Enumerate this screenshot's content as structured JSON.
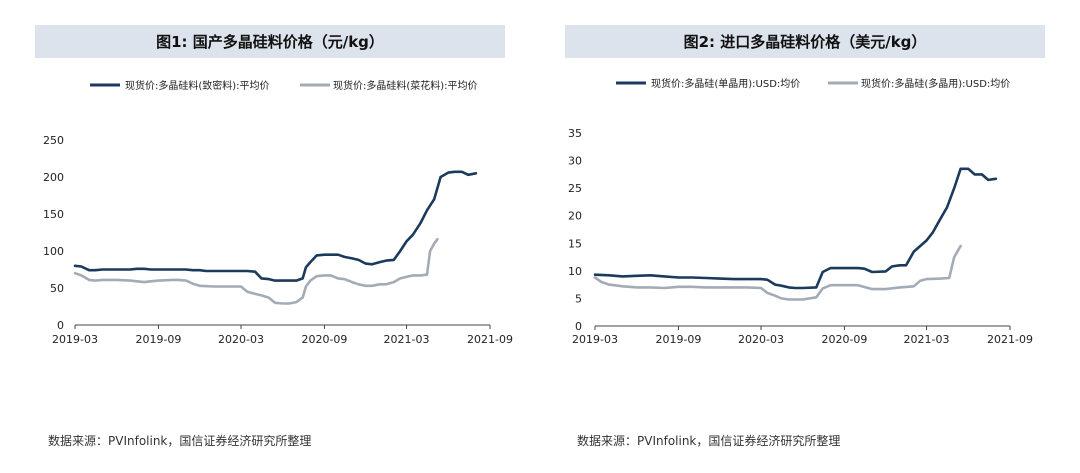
{
  "chart_data": [
    {
      "type": "line",
      "title": "图1:  国产多晶硅料价格（元/kg）",
      "xlabel": "",
      "ylabel": "",
      "ylim": [
        0,
        250
      ],
      "yticks": [
        0,
        50,
        100,
        150,
        200,
        250
      ],
      "xticks": [
        "2019-03",
        "2019-09",
        "2020-03",
        "2020-09",
        "2021-03",
        "2021-09"
      ],
      "legend_position": "top",
      "grid": false,
      "source": "数据来源：PVInfolink，国信证券经济研究所整理",
      "series": [
        {
          "name": "现货价:多晶硅料(致密料):平均价",
          "color": "#1b3a5c",
          "points": [
            [
              "2019-03-01",
              80
            ],
            [
              "2019-03-15",
              79
            ],
            [
              "2019-04-01",
              74
            ],
            [
              "2019-04-15",
              74
            ],
            [
              "2019-05-01",
              75
            ],
            [
              "2019-06-01",
              75
            ],
            [
              "2019-07-01",
              75
            ],
            [
              "2019-07-15",
              76
            ],
            [
              "2019-08-01",
              76
            ],
            [
              "2019-08-15",
              75
            ],
            [
              "2019-09-01",
              75
            ],
            [
              "2019-10-01",
              75
            ],
            [
              "2019-11-01",
              75
            ],
            [
              "2019-11-15",
              74
            ],
            [
              "2019-12-01",
              74
            ],
            [
              "2019-12-15",
              73
            ],
            [
              "2020-01-01",
              73
            ],
            [
              "2020-02-01",
              73
            ],
            [
              "2020-03-01",
              73
            ],
            [
              "2020-03-15",
              73
            ],
            [
              "2020-04-01",
              72
            ],
            [
              "2020-04-15",
              63
            ],
            [
              "2020-05-01",
              62
            ],
            [
              "2020-05-15",
              60
            ],
            [
              "2020-06-01",
              60
            ],
            [
              "2020-06-15",
              60
            ],
            [
              "2020-07-01",
              60
            ],
            [
              "2020-07-15",
              63
            ],
            [
              "2020-07-22",
              78
            ],
            [
              "2020-08-01",
              85
            ],
            [
              "2020-08-15",
              94
            ],
            [
              "2020-09-01",
              95
            ],
            [
              "2020-09-15",
              95
            ],
            [
              "2020-10-01",
              95
            ],
            [
              "2020-10-15",
              92
            ],
            [
              "2020-11-01",
              90
            ],
            [
              "2020-11-15",
              88
            ],
            [
              "2020-12-01",
              83
            ],
            [
              "2020-12-15",
              82
            ],
            [
              "2021-01-01",
              85
            ],
            [
              "2021-01-15",
              87
            ],
            [
              "2021-02-01",
              88
            ],
            [
              "2021-02-15",
              100
            ],
            [
              "2021-03-01",
              113
            ],
            [
              "2021-03-15",
              122
            ],
            [
              "2021-04-01",
              138
            ],
            [
              "2021-04-15",
              155
            ],
            [
              "2021-05-01",
              170
            ],
            [
              "2021-05-15",
              200
            ],
            [
              "2021-06-01",
              206
            ],
            [
              "2021-06-15",
              207
            ],
            [
              "2021-07-01",
              207
            ],
            [
              "2021-07-15",
              203
            ],
            [
              "2021-08-01",
              205
            ]
          ]
        },
        {
          "name": "现货价:多晶硅料(菜花料):平均价",
          "color": "#a3acb6",
          "points": [
            [
              "2019-03-01",
              70
            ],
            [
              "2019-03-15",
              67
            ],
            [
              "2019-04-01",
              61
            ],
            [
              "2019-04-15",
              60
            ],
            [
              "2019-05-01",
              61
            ],
            [
              "2019-06-01",
              61
            ],
            [
              "2019-07-01",
              60
            ],
            [
              "2019-07-15",
              59
            ],
            [
              "2019-08-01",
              58
            ],
            [
              "2019-08-15",
              59
            ],
            [
              "2019-09-01",
              60
            ],
            [
              "2019-10-01",
              61
            ],
            [
              "2019-10-15",
              61
            ],
            [
              "2019-11-01",
              60
            ],
            [
              "2019-11-15",
              56
            ],
            [
              "2019-12-01",
              53
            ],
            [
              "2020-01-01",
              52
            ],
            [
              "2020-02-01",
              52
            ],
            [
              "2020-03-01",
              52
            ],
            [
              "2020-03-15",
              45
            ],
            [
              "2020-04-01",
              42
            ],
            [
              "2020-04-15",
              40
            ],
            [
              "2020-05-01",
              37
            ],
            [
              "2020-05-15",
              30
            ],
            [
              "2020-06-01",
              29
            ],
            [
              "2020-06-15",
              29
            ],
            [
              "2020-07-01",
              31
            ],
            [
              "2020-07-15",
              37
            ],
            [
              "2020-07-22",
              52
            ],
            [
              "2020-08-01",
              60
            ],
            [
              "2020-08-15",
              66
            ],
            [
              "2020-09-01",
              67
            ],
            [
              "2020-09-15",
              67
            ],
            [
              "2020-10-01",
              63
            ],
            [
              "2020-10-15",
              62
            ],
            [
              "2020-11-01",
              58
            ],
            [
              "2020-11-15",
              55
            ],
            [
              "2020-12-01",
              53
            ],
            [
              "2020-12-15",
              53
            ],
            [
              "2021-01-01",
              55
            ],
            [
              "2021-01-15",
              55
            ],
            [
              "2021-02-01",
              58
            ],
            [
              "2021-02-15",
              63
            ],
            [
              "2021-03-01",
              65
            ],
            [
              "2021-03-15",
              67
            ],
            [
              "2021-04-01",
              67
            ],
            [
              "2021-04-15",
              68
            ],
            [
              "2021-04-22",
              100
            ],
            [
              "2021-05-01",
              110
            ],
            [
              "2021-05-08",
              116
            ]
          ]
        }
      ]
    },
    {
      "type": "line",
      "title": "图2:  进口多晶硅料价格（美元/kg）",
      "xlabel": "",
      "ylabel": "",
      "ylim": [
        0,
        35
      ],
      "yticks": [
        0,
        5,
        10,
        15,
        20,
        25,
        30,
        35
      ],
      "xticks": [
        "2019-03",
        "2019-09",
        "2020-03",
        "2020-09",
        "2021-03",
        "2021-09"
      ],
      "legend_position": "top",
      "grid": false,
      "source": "数据来源：PVInfolink，国信证券经济研究所整理",
      "series": [
        {
          "name": "现货价:多晶硅(单晶用):USD:均价",
          "color": "#1b3a5c",
          "points": [
            [
              "2019-03-01",
              9.3
            ],
            [
              "2019-04-01",
              9.2
            ],
            [
              "2019-05-01",
              9.0
            ],
            [
              "2019-06-01",
              9.1
            ],
            [
              "2019-07-01",
              9.2
            ],
            [
              "2019-08-01",
              9.0
            ],
            [
              "2019-09-01",
              8.8
            ],
            [
              "2019-10-01",
              8.8
            ],
            [
              "2019-11-01",
              8.7
            ],
            [
              "2019-12-01",
              8.6
            ],
            [
              "2020-01-01",
              8.5
            ],
            [
              "2020-02-01",
              8.5
            ],
            [
              "2020-03-01",
              8.5
            ],
            [
              "2020-03-15",
              8.4
            ],
            [
              "2020-04-01",
              7.5
            ],
            [
              "2020-04-15",
              7.3
            ],
            [
              "2020-05-01",
              7.0
            ],
            [
              "2020-05-15",
              6.9
            ],
            [
              "2020-06-01",
              6.9
            ],
            [
              "2020-07-01",
              7.0
            ],
            [
              "2020-07-15",
              9.8
            ],
            [
              "2020-08-01",
              10.5
            ],
            [
              "2020-09-01",
              10.5
            ],
            [
              "2020-10-01",
              10.5
            ],
            [
              "2020-10-15",
              10.4
            ],
            [
              "2020-11-01",
              9.8
            ],
            [
              "2020-12-01",
              9.9
            ],
            [
              "2020-12-15",
              10.8
            ],
            [
              "2021-01-01",
              11.0
            ],
            [
              "2021-01-15",
              11.0
            ],
            [
              "2021-02-01",
              13.5
            ],
            [
              "2021-03-01",
              15.5
            ],
            [
              "2021-03-15",
              17.0
            ],
            [
              "2021-04-01",
              19.5
            ],
            [
              "2021-04-15",
              21.5
            ],
            [
              "2021-05-01",
              25.0
            ],
            [
              "2021-05-15",
              28.5
            ],
            [
              "2021-06-01",
              28.5
            ],
            [
              "2021-06-15",
              27.5
            ],
            [
              "2021-07-01",
              27.5
            ],
            [
              "2021-07-15",
              26.5
            ],
            [
              "2021-08-01",
              26.7
            ]
          ]
        },
        {
          "name": "现货价:多晶硅(多晶用):USD:均价",
          "color": "#a3acb6",
          "points": [
            [
              "2019-03-01",
              8.8
            ],
            [
              "2019-03-15",
              8.0
            ],
            [
              "2019-04-01",
              7.5
            ],
            [
              "2019-05-01",
              7.2
            ],
            [
              "2019-06-01",
              7.0
            ],
            [
              "2019-07-01",
              7.0
            ],
            [
              "2019-08-01",
              6.9
            ],
            [
              "2019-09-01",
              7.1
            ],
            [
              "2019-10-01",
              7.1
            ],
            [
              "2019-11-01",
              7.0
            ],
            [
              "2019-12-01",
              7.0
            ],
            [
              "2020-01-01",
              7.0
            ],
            [
              "2020-02-01",
              7.0
            ],
            [
              "2020-03-01",
              6.9
            ],
            [
              "2020-03-15",
              6.0
            ],
            [
              "2020-04-01",
              5.5
            ],
            [
              "2020-04-15",
              5.0
            ],
            [
              "2020-05-01",
              4.8
            ],
            [
              "2020-06-01",
              4.8
            ],
            [
              "2020-07-01",
              5.2
            ],
            [
              "2020-07-15",
              6.8
            ],
            [
              "2020-08-01",
              7.4
            ],
            [
              "2020-09-01",
              7.4
            ],
            [
              "2020-10-01",
              7.4
            ],
            [
              "2020-11-01",
              6.7
            ],
            [
              "2020-12-01",
              6.7
            ],
            [
              "2021-01-01",
              7.0
            ],
            [
              "2021-02-01",
              7.2
            ],
            [
              "2021-02-15",
              8.2
            ],
            [
              "2021-03-01",
              8.5
            ],
            [
              "2021-04-01",
              8.6
            ],
            [
              "2021-04-20",
              8.7
            ],
            [
              "2021-05-01",
              12.5
            ],
            [
              "2021-05-15",
              14.5
            ]
          ]
        }
      ]
    }
  ]
}
